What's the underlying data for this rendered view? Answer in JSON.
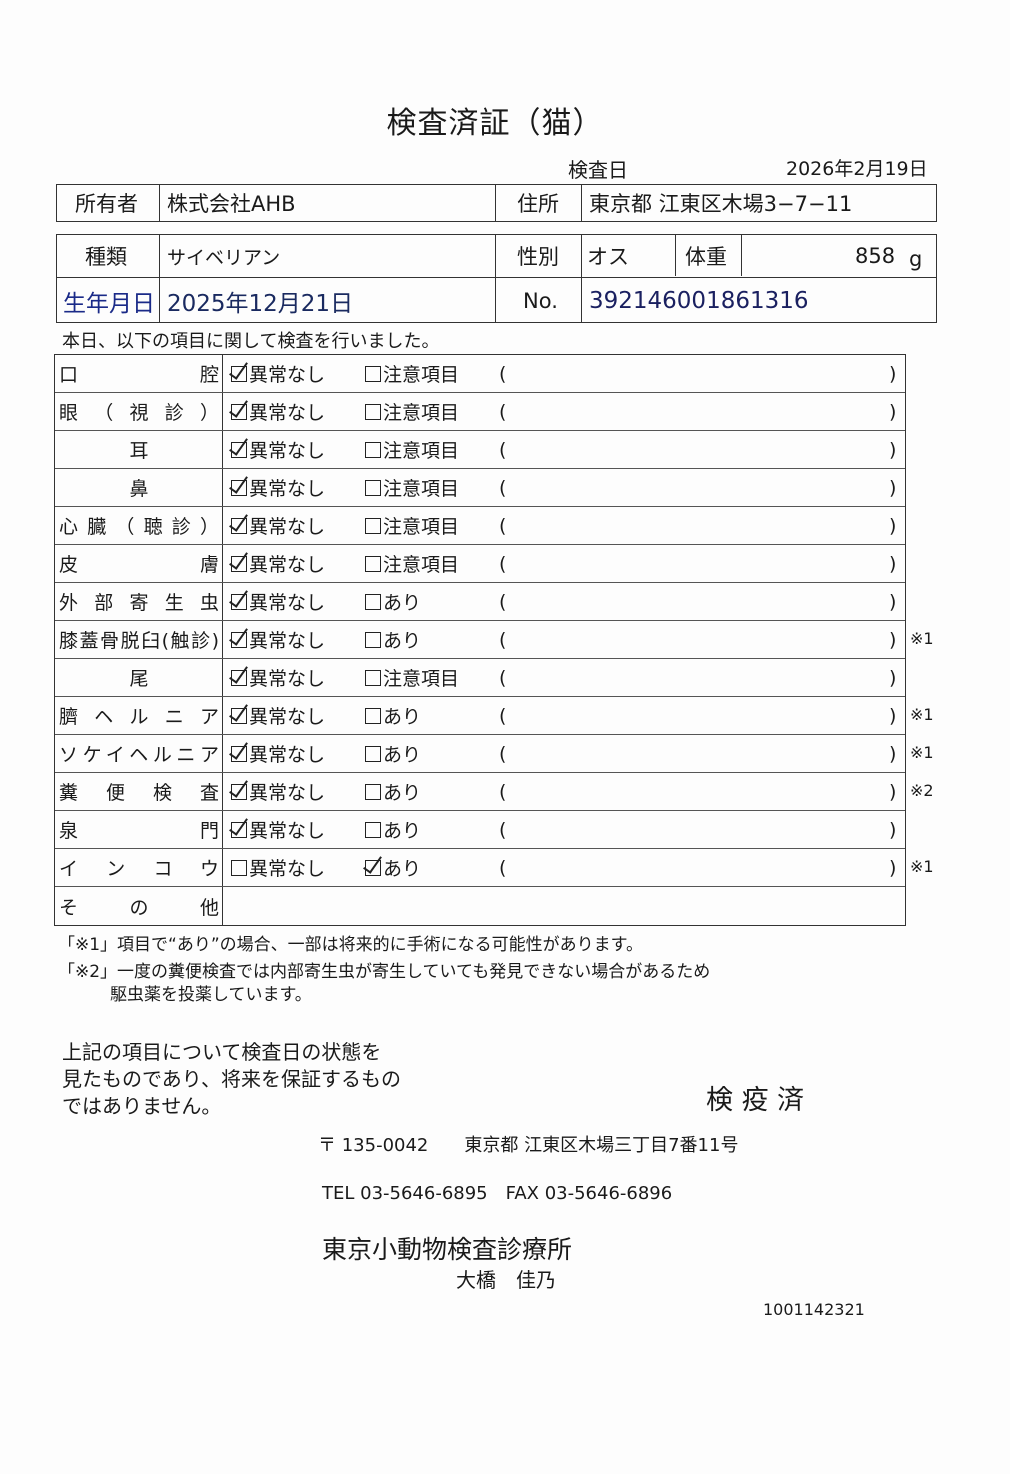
{
  "title": "検査済証（猫）",
  "exam_date_label": "検査日",
  "exam_date": "2026年2月19日",
  "owner": {
    "label": "所有者",
    "value": "株式会社AHB",
    "address_label": "住所",
    "address": "東京都 江東区木場3−7−11"
  },
  "pet": {
    "type_label": "種類",
    "type": "サイベリアン",
    "sex_label": "性別",
    "sex": "オス",
    "weight_label": "体重",
    "weight": "858",
    "weight_unit": "g",
    "birth_label": "生年月日",
    "birth": "2025年12月21日",
    "no_label": "No.",
    "no": "392146001861316"
  },
  "intro": "本日、以下の項目に関して検査を行いました。",
  "paren_open": "(",
  "paren_close": ")",
  "items": [
    {
      "label": "口　　　　　腔",
      "opt1": "異常なし",
      "opt2": "注意項目",
      "checked": 1,
      "note": ""
    },
    {
      "label": "眼（視診）",
      "opt1": "異常なし",
      "opt2": "注意項目",
      "checked": 1,
      "note": ""
    },
    {
      "label": "耳",
      "opt1": "異常なし",
      "opt2": "注意項目",
      "checked": 1,
      "note": ""
    },
    {
      "label": "鼻",
      "opt1": "異常なし",
      "opt2": "注意項目",
      "checked": 1,
      "note": ""
    },
    {
      "label": "心臓（聴診）",
      "opt1": "異常なし",
      "opt2": "注意項目",
      "checked": 1,
      "note": ""
    },
    {
      "label": "皮　　　　　膚",
      "opt1": "異常なし",
      "opt2": "注意項目",
      "checked": 1,
      "note": ""
    },
    {
      "label": "外部寄生虫",
      "opt1": "異常なし",
      "opt2": "あり",
      "checked": 1,
      "note": ""
    },
    {
      "label": "膝蓋骨脱臼(触診)",
      "opt1": "異常なし",
      "opt2": "あり",
      "checked": 1,
      "note": "※1"
    },
    {
      "label": "尾",
      "opt1": "異常なし",
      "opt2": "注意項目",
      "checked": 1,
      "note": ""
    },
    {
      "label": "臍ヘルニア",
      "opt1": "異常なし",
      "opt2": "あり",
      "checked": 1,
      "note": "※1"
    },
    {
      "label": "ソケイヘルニア",
      "opt1": "異常なし",
      "opt2": "あり",
      "checked": 1,
      "note": "※1"
    },
    {
      "label": "糞便検査",
      "opt1": "異常なし",
      "opt2": "あり",
      "checked": 1,
      "note": "※2"
    },
    {
      "label": "泉　　　　　門",
      "opt1": "異常なし",
      "opt2": "あり",
      "checked": 1,
      "note": ""
    },
    {
      "label": "インコウ",
      "opt1": "異常なし",
      "opt2": "あり",
      "checked": 2,
      "note": "※1"
    }
  ],
  "other_label": "その他",
  "footnotes": [
    "「※1」項目で“あり”の場合、一部は将来的に手術になる可能性があります。",
    "「※2」一度の糞便検査では内部寄生虫が寄生していても発見できない場合があるため",
    "駆虫薬を投薬しています。"
  ],
  "disclaimer": [
    "上記の項目について検査日の状態を",
    "見たものであり、将来を保証するもの",
    "ではありません。"
  ],
  "stamp": "検 疫 済",
  "clinic": {
    "postal": "〒 135-0042　　東京都 江東区木場三丁目7番11号",
    "phone": "TEL 03-5646-6895　FAX 03-5646-6896",
    "name": "東京小動物検査診療所",
    "person": "大橋　佳乃"
  },
  "doc_number": "1001142321"
}
